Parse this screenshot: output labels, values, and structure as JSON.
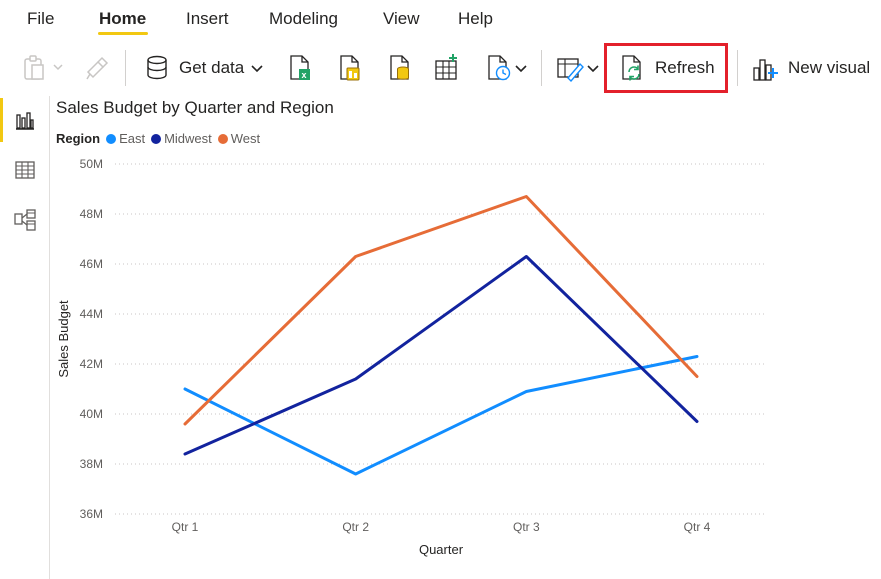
{
  "tabs": [
    {
      "label": "File"
    },
    {
      "label": "Home"
    },
    {
      "label": "Insert"
    },
    {
      "label": "Modeling"
    },
    {
      "label": "View"
    },
    {
      "label": "Help"
    }
  ],
  "active_tab": "Home",
  "ribbon": {
    "get_data_label": "Get data",
    "refresh_label": "Refresh",
    "new_visual_label": "New visual"
  },
  "colors": {
    "accent": "#f2c811",
    "highlight_box": "#e3202b",
    "east": "#118dff",
    "midwest": "#12239e",
    "west": "#e66c37"
  },
  "icons": [
    "paste-icon",
    "format-painter-icon",
    "get-data-icon",
    "excel-icon",
    "dataset-icon",
    "sql-icon",
    "enter-data-icon",
    "recent-sources-icon",
    "transform-data-icon",
    "refresh-icon",
    "new-visual-icon",
    "report-view-icon",
    "data-view-icon",
    "model-view-icon"
  ],
  "chart_data": {
    "type": "line",
    "title": "Sales Budget by Quarter and Region",
    "legend_title": "Region",
    "xlabel": "Quarter",
    "ylabel": "Sales Budget",
    "categories": [
      "Qtr 1",
      "Qtr 2",
      "Qtr 3",
      "Qtr 4"
    ],
    "ylim": [
      36,
      50
    ],
    "yticks": [
      "36M",
      "38M",
      "40M",
      "42M",
      "44M",
      "46M",
      "48M",
      "50M"
    ],
    "ytick_values": [
      36,
      38,
      40,
      42,
      44,
      46,
      48,
      50
    ],
    "grid": true,
    "legend_position": "top-left",
    "series": [
      {
        "name": "East",
        "values": [
          41.0,
          37.6,
          40.9,
          42.3
        ]
      },
      {
        "name": "Midwest",
        "values": [
          38.4,
          41.4,
          46.3,
          39.7
        ]
      },
      {
        "name": "West",
        "values": [
          39.6,
          46.3,
          48.7,
          41.5
        ]
      }
    ]
  }
}
